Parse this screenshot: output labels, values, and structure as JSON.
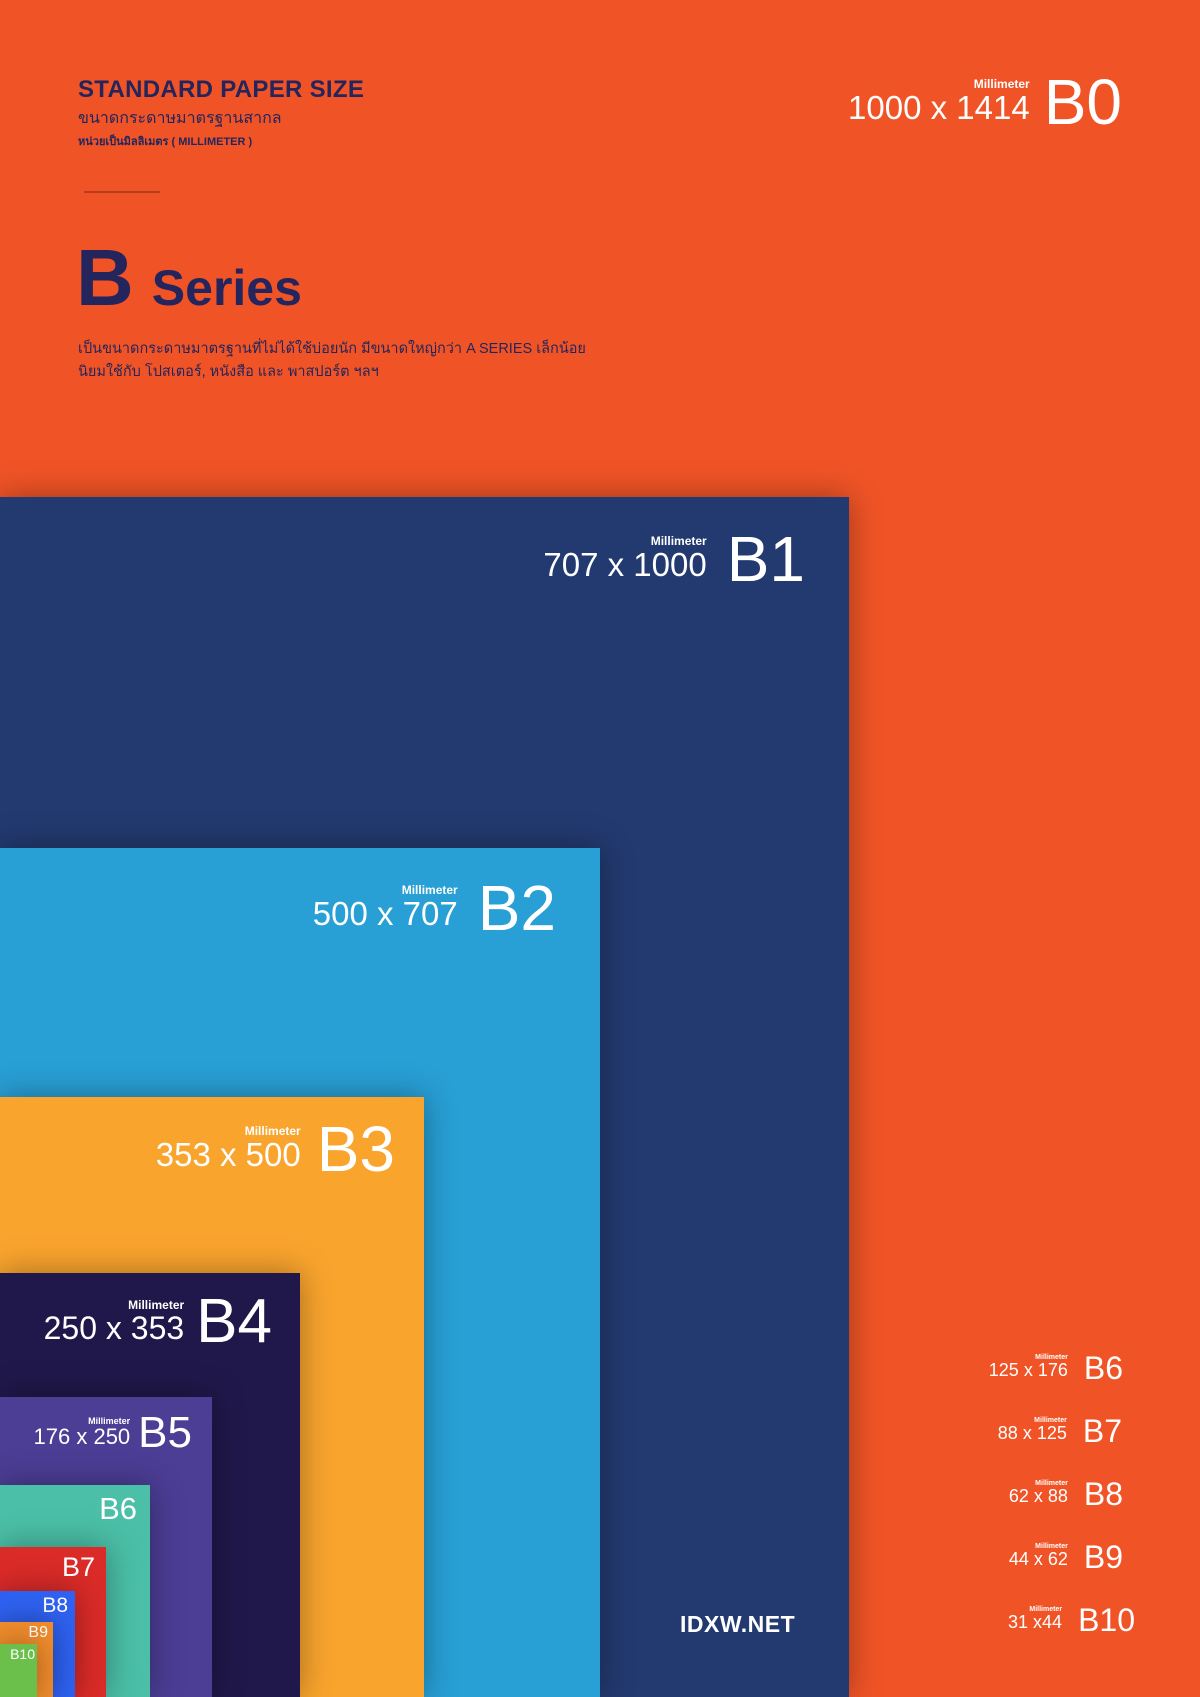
{
  "header": {
    "title": "STANDARD PAPER SIZE",
    "subtitle": "ขนาดกระดาษมาตรฐานสากล",
    "unit_note": "หน่วยเป็นมิลลิเมตร ( MILLIMETER )",
    "series_letter": "B",
    "series_word": "Series",
    "description_line1": "เป็นขนาดกระดาษมาตรฐานที่ไม่ได้ใช้บ่อยนัก มีขนาดใหญ่กว่า A SERIES เล็กน้อย",
    "description_line2": "นิยมใช้กับ โปสเตอร์, หนังสือ และ พาสปอร์ต ฯลฯ"
  },
  "unit_label": "Millimeter",
  "sizes": [
    {
      "code": "B0",
      "dims": "1000 x 1414",
      "color": "#F05426"
    },
    {
      "code": "B1",
      "dims": "707 x 1000",
      "color": "#233A70"
    },
    {
      "code": "B2",
      "dims": "500 x 707",
      "color": "#289FD5"
    },
    {
      "code": "B3",
      "dims": "353 x 500",
      "color": "#F9A42D"
    },
    {
      "code": "B4",
      "dims": "250 x 353",
      "color": "#20184A"
    },
    {
      "code": "B5",
      "dims": "176 x 250",
      "color": "#4C3D95"
    },
    {
      "code": "B6",
      "dims": "125 x 176",
      "color": "#4BBFA7"
    },
    {
      "code": "B7",
      "dims": "88 x 125",
      "color": "#DA2B28"
    },
    {
      "code": "B8",
      "dims": "62 x 88",
      "color": "#2F62F2"
    },
    {
      "code": "B9",
      "dims": "44 x 62",
      "color": "#F08C2C"
    },
    {
      "code": "B10",
      "dims": "31 x44",
      "color": "#6BBF4B"
    }
  ],
  "footer": {
    "brand": "IDXW.NET"
  }
}
